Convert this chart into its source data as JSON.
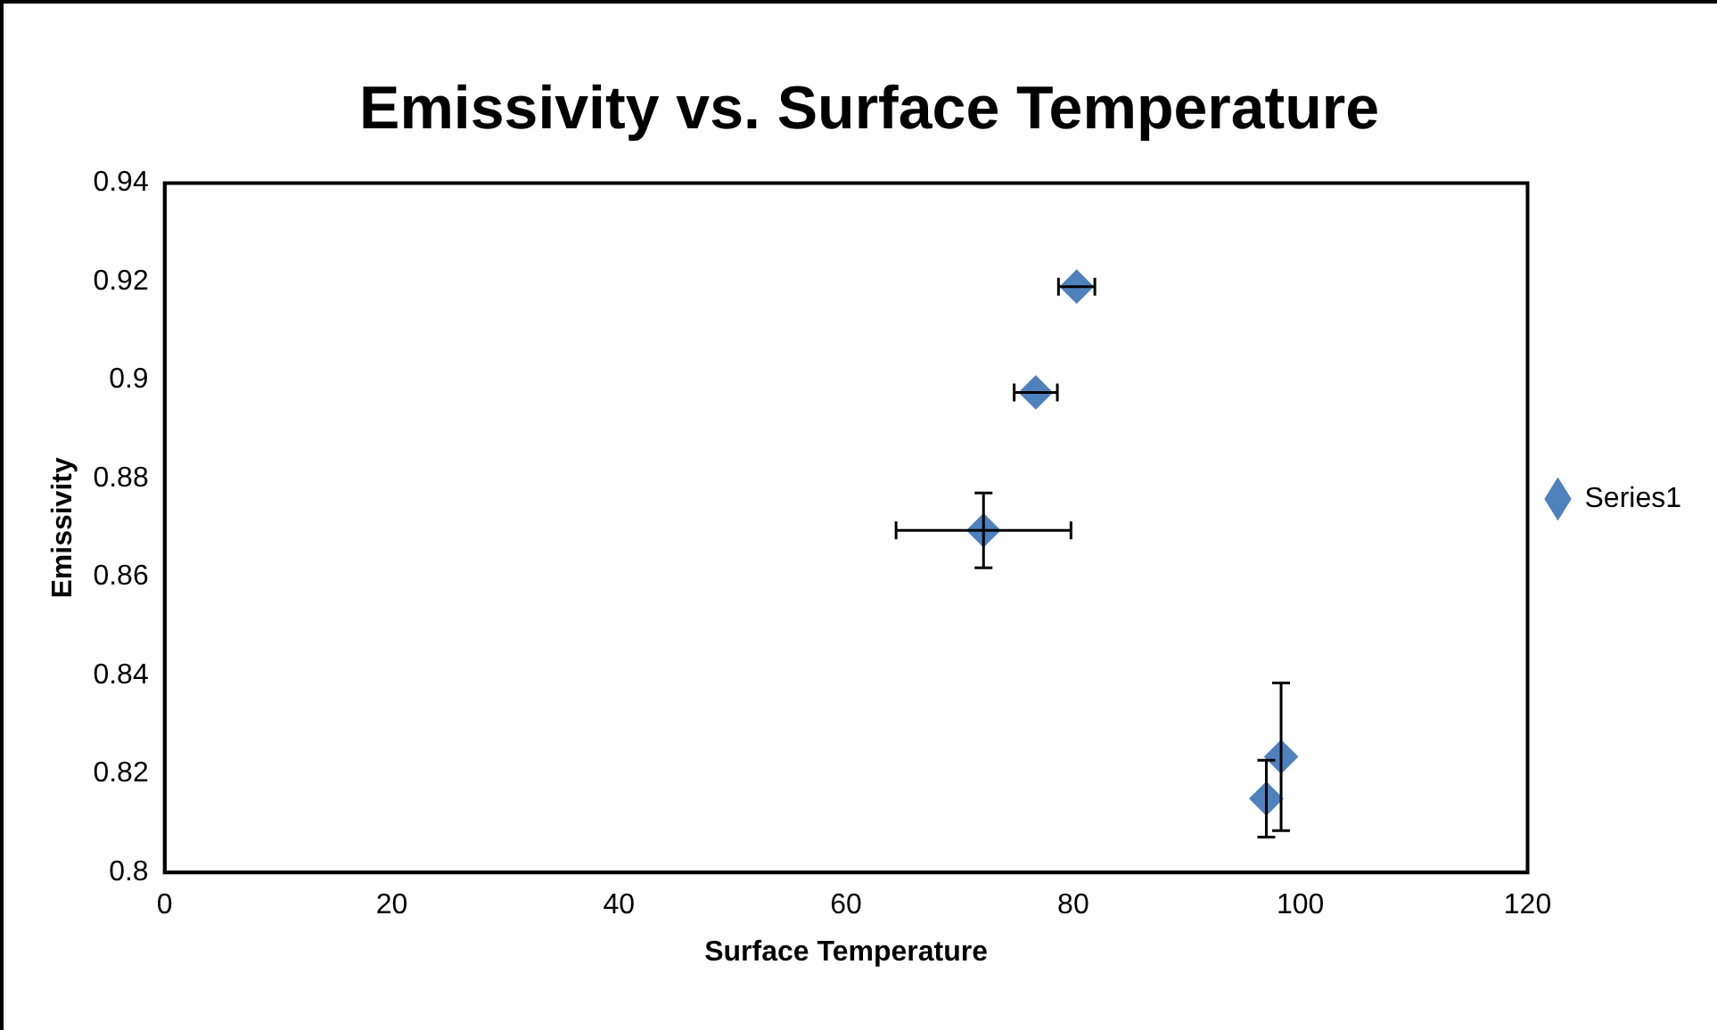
{
  "chart_data": {
    "type": "scatter",
    "title": "Emissivity vs. Surface Temperature",
    "xlabel": "Surface Temperature",
    "ylabel": "Emissivity",
    "series": [
      {
        "name": "Series1",
        "color": "#4f81bd",
        "x": [
          80.3,
          76.7,
          72.1,
          98.3,
          97.0
        ],
        "values": [
          0.919,
          0.8975,
          0.8695,
          0.8235,
          0.815
        ],
        "errors": [
          null,
          null,
          0.0076,
          0.015,
          0.0078
        ],
        "xerrors": [
          1.6,
          1.9,
          7.7,
          null,
          null
        ]
      }
    ],
    "xlim": [
      0,
      120
    ],
    "xticks": [
      0,
      20,
      40,
      60,
      80,
      100,
      120
    ],
    "ylim": [
      0.8,
      0.94
    ],
    "yticks": [
      0.8,
      0.82,
      0.84,
      0.86,
      0.88,
      0.9,
      0.92,
      0.94
    ],
    "grid": false,
    "legend": "right",
    "marker": "diamond"
  }
}
